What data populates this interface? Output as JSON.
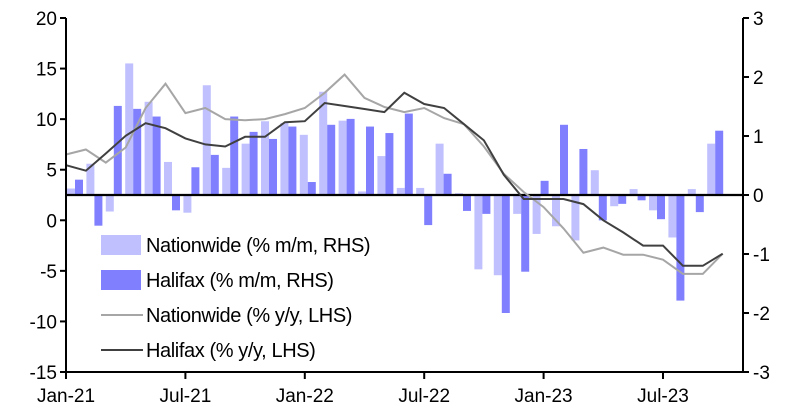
{
  "chart_data": {
    "type": "bar+line",
    "title": "",
    "categories": [
      "Jan-21",
      "Feb-21",
      "Mar-21",
      "Apr-21",
      "May-21",
      "Jun-21",
      "Jul-21",
      "Aug-21",
      "Sep-21",
      "Oct-21",
      "Nov-21",
      "Dec-21",
      "Jan-22",
      "Feb-22",
      "Mar-22",
      "Apr-22",
      "May-22",
      "Jun-22",
      "Jul-22",
      "Aug-22",
      "Sep-22",
      "Oct-22",
      "Nov-22",
      "Dec-22",
      "Jan-23",
      "Feb-23",
      "Mar-23",
      "Apr-23",
      "May-23",
      "Jun-23",
      "Jul-23",
      "Aug-23",
      "Sep-23",
      "Oct-23"
    ],
    "x_tick_labels": [
      "Jan-21",
      "Jul-21",
      "Jan-22",
      "Jul-22",
      "Jan-23",
      "Jul-23"
    ],
    "left_axis": {
      "ylim": [
        -15,
        20
      ],
      "ticks": [
        "20",
        "15",
        "10",
        "5",
        "0",
        "-5",
        "-10",
        "-15"
      ]
    },
    "right_axis": {
      "ylim": [
        -3,
        3
      ],
      "ticks": [
        "3",
        "2",
        "1",
        "0",
        "-1",
        "-2",
        "-3"
      ]
    },
    "series": [
      {
        "name": "Nationwide (% m/m, RHS)",
        "type": "bar",
        "axis": "right",
        "color": "#c0c0ff",
        "values": [
          0.11,
          0.53,
          -0.28,
          2.23,
          1.58,
          0.56,
          -0.3,
          1.86,
          0.46,
          0.87,
          1.25,
          1.22,
          1.02,
          1.75,
          1.26,
          0.06,
          0.66,
          0.12,
          0.12,
          0.87,
          0.03,
          -1.26,
          -1.36,
          -0.32,
          -0.66,
          -0.53,
          -0.77,
          0.42,
          -0.19,
          0.1,
          -0.26,
          -0.72,
          0.1,
          0.87
        ]
      },
      {
        "name": "Halifax (% m/m, RHS)",
        "type": "bar",
        "axis": "right",
        "color": "#8080ff",
        "values": [
          0.26,
          -0.52,
          1.51,
          1.46,
          1.33,
          -0.26,
          0.47,
          0.68,
          1.33,
          1.07,
          0.95,
          1.16,
          0.22,
          1.19,
          1.29,
          1.16,
          1.05,
          1.38,
          -0.51,
          0.36,
          -0.27,
          -0.32,
          -2.0,
          -1.3,
          0.24,
          1.19,
          0.78,
          -0.43,
          -0.15,
          -0.09,
          -0.41,
          -1.79,
          -0.29,
          1.09
        ]
      },
      {
        "name": "Nationwide (% y/y, LHS)",
        "type": "line",
        "axis": "left",
        "color": "#a6a6a6",
        "values": [
          6.5,
          7.0,
          5.7,
          7.2,
          11.1,
          13.5,
          10.6,
          11.1,
          10.0,
          9.9,
          10.0,
          10.5,
          11.1,
          12.6,
          14.4,
          12.1,
          11.2,
          10.7,
          11.1,
          10.1,
          9.5,
          7.3,
          4.6,
          2.8,
          1.3,
          -0.8,
          -3.2,
          -2.7,
          -3.4,
          -3.4,
          -3.9,
          -5.3,
          -5.3,
          -3.3
        ]
      },
      {
        "name": "Halifax (% y/y, LHS)",
        "type": "line",
        "axis": "left",
        "color": "#404040",
        "values": [
          5.45,
          4.9,
          6.6,
          8.35,
          9.6,
          9.1,
          8.1,
          7.5,
          7.3,
          8.25,
          8.25,
          9.7,
          9.8,
          11.6,
          11.3,
          11.0,
          10.7,
          12.6,
          11.5,
          11.1,
          9.5,
          7.9,
          4.5,
          2.1,
          2.1,
          2.1,
          1.6,
          0.0,
          -1.2,
          -2.5,
          -2.5,
          -4.5,
          -4.5,
          -3.3
        ]
      }
    ],
    "legend_position": "bottom-left",
    "grid": false
  }
}
